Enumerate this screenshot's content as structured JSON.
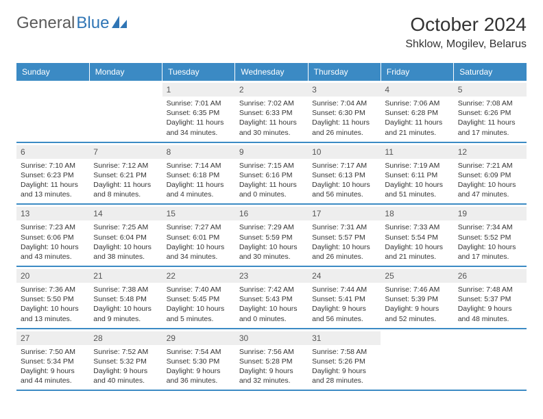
{
  "brand": {
    "part1": "General",
    "part2": "Blue"
  },
  "title": "October 2024",
  "location": "Shklow, Mogilev, Belarus",
  "colors": {
    "header_bg": "#3b8ac4",
    "header_text": "#ffffff",
    "daynum_bg": "#eeeeee",
    "border": "#3b8ac4",
    "text": "#333333",
    "logo_gray": "#5a5a5a",
    "logo_blue": "#2f75b5"
  },
  "weekdays": [
    "Sunday",
    "Monday",
    "Tuesday",
    "Wednesday",
    "Thursday",
    "Friday",
    "Saturday"
  ],
  "weeks": [
    [
      null,
      null,
      {
        "n": "1",
        "sr": "Sunrise: 7:01 AM",
        "ss": "Sunset: 6:35 PM",
        "d1": "Daylight: 11 hours",
        "d2": "and 34 minutes."
      },
      {
        "n": "2",
        "sr": "Sunrise: 7:02 AM",
        "ss": "Sunset: 6:33 PM",
        "d1": "Daylight: 11 hours",
        "d2": "and 30 minutes."
      },
      {
        "n": "3",
        "sr": "Sunrise: 7:04 AM",
        "ss": "Sunset: 6:30 PM",
        "d1": "Daylight: 11 hours",
        "d2": "and 26 minutes."
      },
      {
        "n": "4",
        "sr": "Sunrise: 7:06 AM",
        "ss": "Sunset: 6:28 PM",
        "d1": "Daylight: 11 hours",
        "d2": "and 21 minutes."
      },
      {
        "n": "5",
        "sr": "Sunrise: 7:08 AM",
        "ss": "Sunset: 6:26 PM",
        "d1": "Daylight: 11 hours",
        "d2": "and 17 minutes."
      }
    ],
    [
      {
        "n": "6",
        "sr": "Sunrise: 7:10 AM",
        "ss": "Sunset: 6:23 PM",
        "d1": "Daylight: 11 hours",
        "d2": "and 13 minutes."
      },
      {
        "n": "7",
        "sr": "Sunrise: 7:12 AM",
        "ss": "Sunset: 6:21 PM",
        "d1": "Daylight: 11 hours",
        "d2": "and 8 minutes."
      },
      {
        "n": "8",
        "sr": "Sunrise: 7:14 AM",
        "ss": "Sunset: 6:18 PM",
        "d1": "Daylight: 11 hours",
        "d2": "and 4 minutes."
      },
      {
        "n": "9",
        "sr": "Sunrise: 7:15 AM",
        "ss": "Sunset: 6:16 PM",
        "d1": "Daylight: 11 hours",
        "d2": "and 0 minutes."
      },
      {
        "n": "10",
        "sr": "Sunrise: 7:17 AM",
        "ss": "Sunset: 6:13 PM",
        "d1": "Daylight: 10 hours",
        "d2": "and 56 minutes."
      },
      {
        "n": "11",
        "sr": "Sunrise: 7:19 AM",
        "ss": "Sunset: 6:11 PM",
        "d1": "Daylight: 10 hours",
        "d2": "and 51 minutes."
      },
      {
        "n": "12",
        "sr": "Sunrise: 7:21 AM",
        "ss": "Sunset: 6:09 PM",
        "d1": "Daylight: 10 hours",
        "d2": "and 47 minutes."
      }
    ],
    [
      {
        "n": "13",
        "sr": "Sunrise: 7:23 AM",
        "ss": "Sunset: 6:06 PM",
        "d1": "Daylight: 10 hours",
        "d2": "and 43 minutes."
      },
      {
        "n": "14",
        "sr": "Sunrise: 7:25 AM",
        "ss": "Sunset: 6:04 PM",
        "d1": "Daylight: 10 hours",
        "d2": "and 38 minutes."
      },
      {
        "n": "15",
        "sr": "Sunrise: 7:27 AM",
        "ss": "Sunset: 6:01 PM",
        "d1": "Daylight: 10 hours",
        "d2": "and 34 minutes."
      },
      {
        "n": "16",
        "sr": "Sunrise: 7:29 AM",
        "ss": "Sunset: 5:59 PM",
        "d1": "Daylight: 10 hours",
        "d2": "and 30 minutes."
      },
      {
        "n": "17",
        "sr": "Sunrise: 7:31 AM",
        "ss": "Sunset: 5:57 PM",
        "d1": "Daylight: 10 hours",
        "d2": "and 26 minutes."
      },
      {
        "n": "18",
        "sr": "Sunrise: 7:33 AM",
        "ss": "Sunset: 5:54 PM",
        "d1": "Daylight: 10 hours",
        "d2": "and 21 minutes."
      },
      {
        "n": "19",
        "sr": "Sunrise: 7:34 AM",
        "ss": "Sunset: 5:52 PM",
        "d1": "Daylight: 10 hours",
        "d2": "and 17 minutes."
      }
    ],
    [
      {
        "n": "20",
        "sr": "Sunrise: 7:36 AM",
        "ss": "Sunset: 5:50 PM",
        "d1": "Daylight: 10 hours",
        "d2": "and 13 minutes."
      },
      {
        "n": "21",
        "sr": "Sunrise: 7:38 AM",
        "ss": "Sunset: 5:48 PM",
        "d1": "Daylight: 10 hours",
        "d2": "and 9 minutes."
      },
      {
        "n": "22",
        "sr": "Sunrise: 7:40 AM",
        "ss": "Sunset: 5:45 PM",
        "d1": "Daylight: 10 hours",
        "d2": "and 5 minutes."
      },
      {
        "n": "23",
        "sr": "Sunrise: 7:42 AM",
        "ss": "Sunset: 5:43 PM",
        "d1": "Daylight: 10 hours",
        "d2": "and 0 minutes."
      },
      {
        "n": "24",
        "sr": "Sunrise: 7:44 AM",
        "ss": "Sunset: 5:41 PM",
        "d1": "Daylight: 9 hours",
        "d2": "and 56 minutes."
      },
      {
        "n": "25",
        "sr": "Sunrise: 7:46 AM",
        "ss": "Sunset: 5:39 PM",
        "d1": "Daylight: 9 hours",
        "d2": "and 52 minutes."
      },
      {
        "n": "26",
        "sr": "Sunrise: 7:48 AM",
        "ss": "Sunset: 5:37 PM",
        "d1": "Daylight: 9 hours",
        "d2": "and 48 minutes."
      }
    ],
    [
      {
        "n": "27",
        "sr": "Sunrise: 7:50 AM",
        "ss": "Sunset: 5:34 PM",
        "d1": "Daylight: 9 hours",
        "d2": "and 44 minutes."
      },
      {
        "n": "28",
        "sr": "Sunrise: 7:52 AM",
        "ss": "Sunset: 5:32 PM",
        "d1": "Daylight: 9 hours",
        "d2": "and 40 minutes."
      },
      {
        "n": "29",
        "sr": "Sunrise: 7:54 AM",
        "ss": "Sunset: 5:30 PM",
        "d1": "Daylight: 9 hours",
        "d2": "and 36 minutes."
      },
      {
        "n": "30",
        "sr": "Sunrise: 7:56 AM",
        "ss": "Sunset: 5:28 PM",
        "d1": "Daylight: 9 hours",
        "d2": "and 32 minutes."
      },
      {
        "n": "31",
        "sr": "Sunrise: 7:58 AM",
        "ss": "Sunset: 5:26 PM",
        "d1": "Daylight: 9 hours",
        "d2": "and 28 minutes."
      },
      null,
      null
    ]
  ]
}
